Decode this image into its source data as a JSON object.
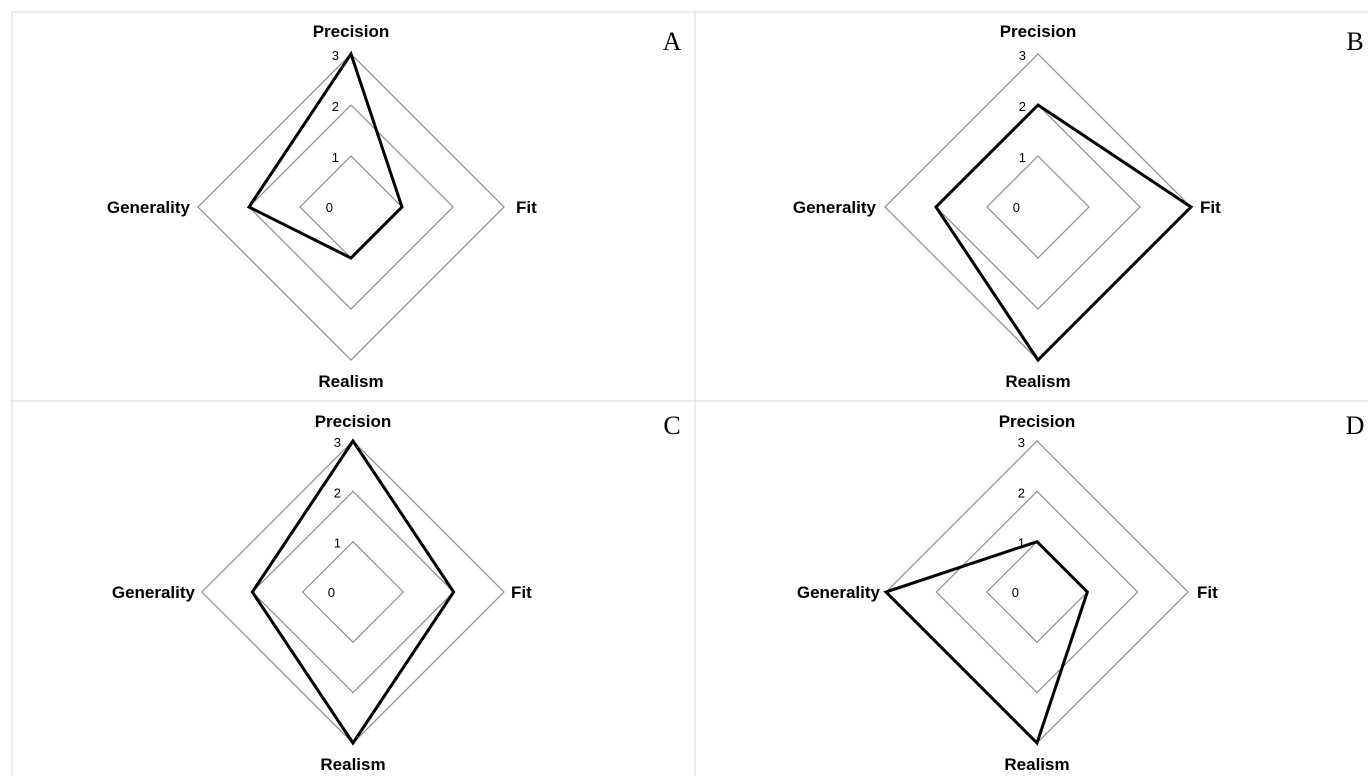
{
  "chart_data": [
    {
      "type": "radar",
      "panel": "A",
      "axes": [
        "Precision",
        "Fit",
        "Realism",
        "Generality"
      ],
      "ticks": [
        "0",
        "1",
        "2",
        "3"
      ],
      "range": [
        0,
        3
      ],
      "values": [
        3,
        1,
        1,
        2
      ]
    },
    {
      "type": "radar",
      "panel": "B",
      "axes": [
        "Precision",
        "Fit",
        "Realism",
        "Generality"
      ],
      "ticks": [
        "0",
        "1",
        "2",
        "3"
      ],
      "range": [
        0,
        3
      ],
      "values": [
        2,
        3,
        3,
        2
      ]
    },
    {
      "type": "radar",
      "panel": "C",
      "axes": [
        "Precision",
        "Fit",
        "Realism",
        "Generality"
      ],
      "ticks": [
        "0",
        "1",
        "2",
        "3"
      ],
      "range": [
        0,
        3
      ],
      "values": [
        3,
        2,
        3,
        2
      ]
    },
    {
      "type": "radar",
      "panel": "D",
      "axes": [
        "Precision",
        "Fit",
        "Realism",
        "Generality"
      ],
      "ticks": [
        "0",
        "1",
        "2",
        "3"
      ],
      "range": [
        0,
        3
      ],
      "values": [
        1,
        1,
        3,
        3
      ]
    }
  ],
  "colors": {
    "grid": "#8c8c8c",
    "series": "#000000",
    "border": "#d9d9d9"
  }
}
